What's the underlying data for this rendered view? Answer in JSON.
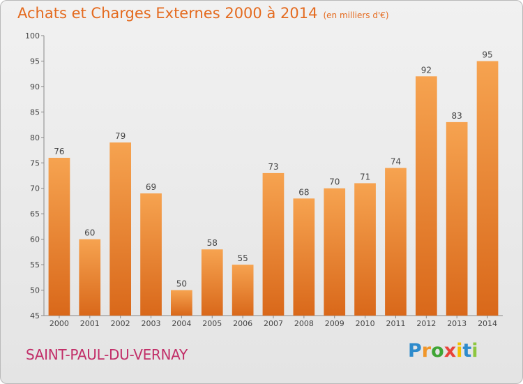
{
  "title": "Achats et Charges Externes 2000 à 2014",
  "subtitle": "(en milliers d'€)",
  "town": "SAINT-PAUL-DU-VERNAY",
  "brand": {
    "letters": [
      "P",
      "r",
      "o",
      "x",
      "i",
      "t",
      "i"
    ],
    "colors": [
      "#2e8bcc",
      "#f0962a",
      "#3fa535",
      "#e8433a",
      "#f2c100",
      "#2e8bcc",
      "#8dc63f"
    ]
  },
  "colors": {
    "bar": "#f28c36",
    "bar_dark": "#d9681a",
    "text": "#e46a1e",
    "town": "#c22e68"
  },
  "chart_data": {
    "type": "bar",
    "categories": [
      "2000",
      "2001",
      "2002",
      "2003",
      "2004",
      "2005",
      "2006",
      "2007",
      "2008",
      "2009",
      "2010",
      "2011",
      "2012",
      "2013",
      "2014"
    ],
    "values": [
      76,
      60,
      79,
      69,
      50,
      58,
      55,
      73,
      68,
      70,
      71,
      74,
      92,
      83,
      95
    ],
    "ylim": [
      45,
      100
    ],
    "yticks": [
      45,
      50,
      55,
      60,
      65,
      70,
      75,
      80,
      85,
      90,
      95,
      100
    ],
    "grid": false,
    "xlabel": "",
    "ylabel": ""
  }
}
